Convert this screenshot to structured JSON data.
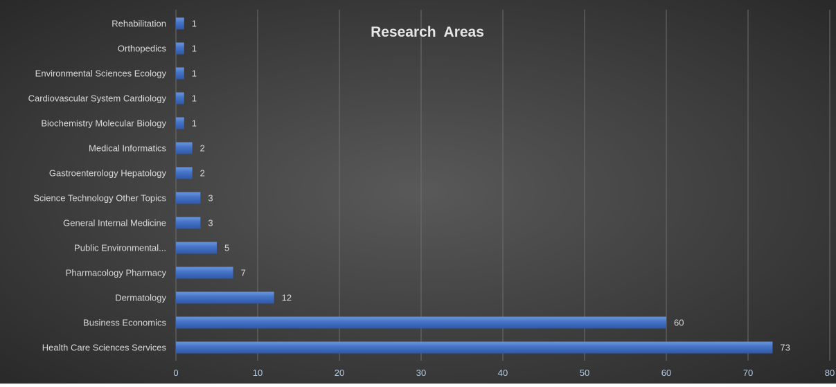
{
  "chart_data": {
    "type": "bar",
    "orientation": "horizontal",
    "title": "Research  Areas",
    "categories": [
      "Rehabilitation",
      "Orthopedics",
      "Environmental Sciences Ecology",
      "Cardiovascular System Cardiology",
      "Biochemistry Molecular Biology",
      "Medical Informatics",
      "Gastroenterology Hepatology",
      "Science Technology Other Topics",
      "General Internal Medicine",
      "Public Environmental...",
      "Pharmacology Pharmacy",
      "Dermatology",
      "Business Economics",
      "Health Care Sciences Services"
    ],
    "values": [
      1,
      1,
      1,
      1,
      1,
      2,
      2,
      3,
      3,
      5,
      7,
      12,
      60,
      73
    ],
    "xlim": [
      0,
      80
    ],
    "xticks": [
      0,
      10,
      20,
      30,
      40,
      50,
      60,
      70,
      80
    ],
    "grid": true,
    "data_labels": true,
    "colors": {
      "bar": "#4472C4",
      "background_center": "#595959",
      "background_edge": "#262626",
      "text": "#D9D9D9",
      "tick_text": "#B8CCE4",
      "grid": "#6E6E6E"
    }
  }
}
